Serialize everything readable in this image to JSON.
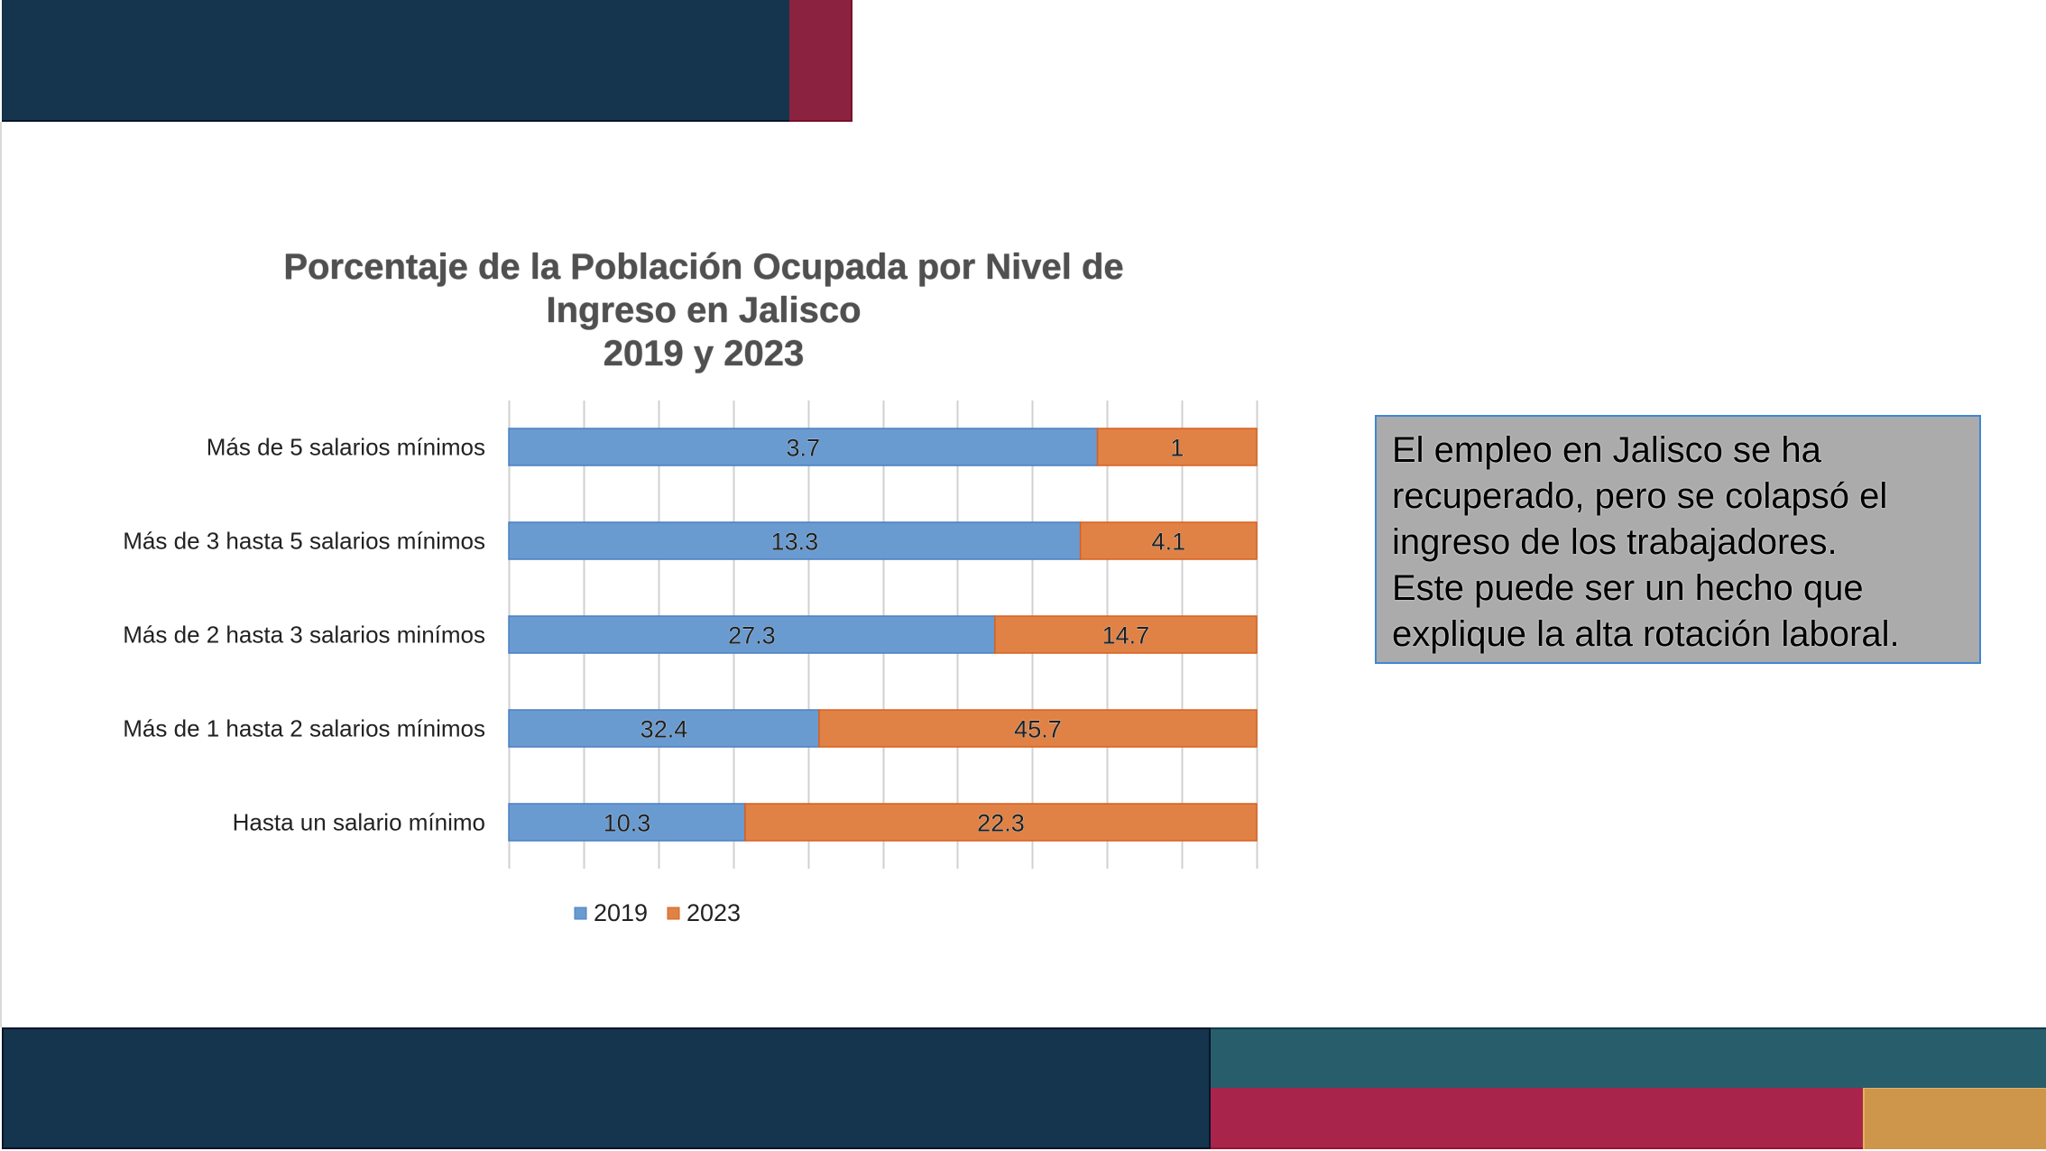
{
  "colors": {
    "top_navy": "#15344d",
    "top_crimson": "#8b2340",
    "bottom_navy": "#15344d",
    "bottom_teal": "#285d6c",
    "bottom_crimson": "#a8244b",
    "bottom_gold": "#cd964b",
    "series_2019": "#6a9bd0",
    "series_2019_border": "#4a7fc4",
    "series_2023": "#e08245",
    "series_2023_border": "#d8601f",
    "gridline": "#d0d0d0",
    "note_bg": "#ababab",
    "note_border": "#3f86d6"
  },
  "note": {
    "lines": [
      "El empleo en Jalisco se ha",
      "recuperado, pero se colapsó el",
      "ingreso de los trabajadores.",
      "Este puede ser un hecho que",
      "explique la alta rotación laboral."
    ]
  },
  "chart_data": {
    "type": "bar",
    "orientation": "horizontal",
    "stacking": "percent",
    "title_lines": [
      "Porcentaje de la Población Ocupada por Nivel de",
      "Ingreso en Jalisco",
      "2019 y 2023"
    ],
    "categories": [
      "Más de 5 salarios mínimos",
      "Más de  3 hasta 5 salarios mínimos",
      "Más de  2 hasta 3 salarios minímos",
      "Más de 1 hasta 2 salarios mínimos",
      "Hasta un salario mínimo"
    ],
    "series": [
      {
        "name": "2019",
        "values": [
          3.7,
          13.3,
          27.3,
          32.4,
          10.3
        ],
        "labels": [
          "3.7",
          "13.3",
          "27.3",
          "32.4",
          "10.3"
        ]
      },
      {
        "name": "2023",
        "values": [
          1,
          4.1,
          14.7,
          45.7,
          22.3
        ],
        "labels": [
          "1",
          "4.1",
          "14.7",
          "45.7",
          "22.3"
        ]
      }
    ],
    "xlim": [
      0,
      100
    ],
    "x_gridlines_every": 10,
    "x_tick_labels_visible": false,
    "grid": true,
    "legend": {
      "position": "bottom",
      "entries": [
        "2019",
        "2023"
      ]
    },
    "xlabel": "",
    "ylabel": ""
  }
}
